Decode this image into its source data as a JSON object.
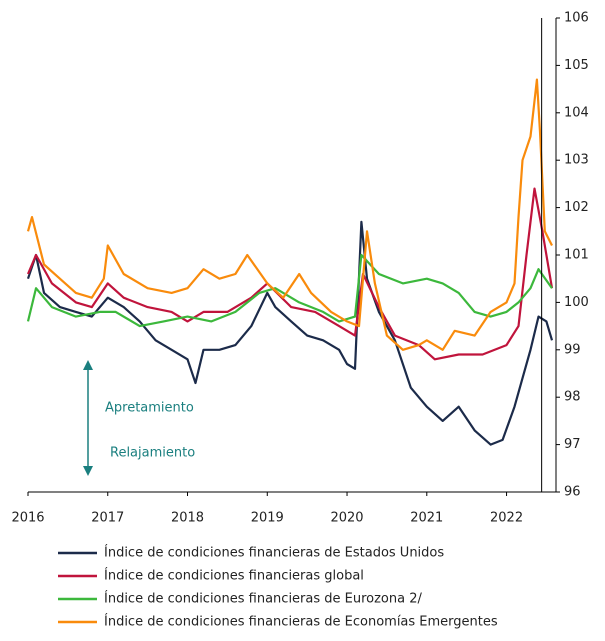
{
  "chart_data": {
    "type": "line",
    "xlim": [
      2016,
      2022.62
    ],
    "xticks": [
      2016,
      2017,
      2018,
      2019,
      2020,
      2021,
      2022
    ],
    "ylim": [
      96,
      106
    ],
    "yticks": [
      96,
      97,
      98,
      99,
      100,
      101,
      102,
      103,
      104,
      105,
      106
    ],
    "vline": 2022.44,
    "annotations": [
      "Apretamiento",
      "Relajamiento"
    ],
    "series": [
      {
        "name": "Índice de condiciones financieras de Estados Unidos",
        "color": "#1c2b4a",
        "x": [
          2016.0,
          2016.1,
          2016.2,
          2016.4,
          2016.6,
          2016.8,
          2017.0,
          2017.2,
          2017.4,
          2017.6,
          2017.8,
          2018.0,
          2018.1,
          2018.2,
          2018.4,
          2018.6,
          2018.8,
          2019.0,
          2019.1,
          2019.3,
          2019.5,
          2019.7,
          2019.9,
          2020.0,
          2020.1,
          2020.18,
          2020.25,
          2020.4,
          2020.6,
          2020.8,
          2021.0,
          2021.2,
          2021.4,
          2021.6,
          2021.8,
          2021.95,
          2022.1,
          2022.2,
          2022.3,
          2022.4,
          2022.5,
          2022.57
        ],
        "values": [
          100.5,
          101.0,
          100.2,
          99.9,
          99.8,
          99.7,
          100.1,
          99.9,
          99.6,
          99.2,
          99.0,
          98.8,
          98.3,
          99.0,
          99.0,
          99.1,
          99.5,
          100.2,
          99.9,
          99.6,
          99.3,
          99.2,
          99.0,
          98.7,
          98.6,
          101.7,
          100.5,
          99.8,
          99.2,
          98.2,
          97.8,
          97.5,
          97.8,
          97.3,
          97.0,
          97.1,
          97.8,
          98.4,
          99.0,
          99.7,
          99.6,
          99.2
        ]
      },
      {
        "name": "Índice de condiciones financieras global",
        "color": "#c0143c",
        "x": [
          2016.0,
          2016.1,
          2016.3,
          2016.6,
          2016.8,
          2017.0,
          2017.2,
          2017.5,
          2017.8,
          2018.0,
          2018.2,
          2018.5,
          2018.8,
          2019.0,
          2019.3,
          2019.6,
          2019.9,
          2020.1,
          2020.2,
          2020.4,
          2020.6,
          2020.9,
          2021.1,
          2021.4,
          2021.7,
          2022.0,
          2022.15,
          2022.25,
          2022.35,
          2022.45,
          2022.57
        ],
        "values": [
          100.6,
          101.0,
          100.4,
          100.0,
          99.9,
          100.4,
          100.1,
          99.9,
          99.8,
          99.6,
          99.8,
          99.8,
          100.1,
          100.4,
          99.9,
          99.8,
          99.5,
          99.3,
          100.6,
          99.9,
          99.3,
          99.1,
          98.8,
          98.9,
          98.9,
          99.1,
          99.5,
          101.0,
          102.4,
          101.5,
          100.3
        ]
      },
      {
        "name": "Índice de condiciones financieras de Eurozona 2/",
        "color": "#3cb83c",
        "x": [
          2016.0,
          2016.1,
          2016.3,
          2016.6,
          2016.9,
          2017.1,
          2017.4,
          2017.7,
          2018.0,
          2018.3,
          2018.6,
          2018.9,
          2019.1,
          2019.4,
          2019.7,
          2019.9,
          2020.1,
          2020.18,
          2020.4,
          2020.7,
          2021.0,
          2021.2,
          2021.4,
          2021.6,
          2021.8,
          2022.0,
          2022.15,
          2022.3,
          2022.4,
          2022.57
        ],
        "values": [
          99.6,
          100.3,
          99.9,
          99.7,
          99.8,
          99.8,
          99.5,
          99.6,
          99.7,
          99.6,
          99.8,
          100.2,
          100.3,
          100.0,
          99.8,
          99.6,
          99.7,
          101.0,
          100.6,
          100.4,
          100.5,
          100.4,
          100.2,
          99.8,
          99.7,
          99.8,
          100.0,
          100.3,
          100.7,
          100.3
        ]
      },
      {
        "name": "Índice de condiciones financieras de Economías Emergentes",
        "color": "#f98b0c",
        "x": [
          2016.0,
          2016.05,
          2016.2,
          2016.4,
          2016.6,
          2016.8,
          2016.95,
          2017.0,
          2017.2,
          2017.5,
          2017.8,
          2018.0,
          2018.2,
          2018.4,
          2018.6,
          2018.75,
          2019.0,
          2019.2,
          2019.4,
          2019.55,
          2019.8,
          2020.0,
          2020.15,
          2020.25,
          2020.35,
          2020.5,
          2020.7,
          2020.9,
          2021.0,
          2021.2,
          2021.35,
          2021.6,
          2021.8,
          2022.0,
          2022.1,
          2022.15,
          2022.2,
          2022.3,
          2022.38,
          2022.42,
          2022.48,
          2022.57
        ],
        "values": [
          101.5,
          101.8,
          100.8,
          100.5,
          100.2,
          100.1,
          100.5,
          101.2,
          100.6,
          100.3,
          100.2,
          100.3,
          100.7,
          100.5,
          100.6,
          101.0,
          100.4,
          100.1,
          100.6,
          100.2,
          99.8,
          99.6,
          99.5,
          101.5,
          100.4,
          99.3,
          99.0,
          99.1,
          99.2,
          99.0,
          99.4,
          99.3,
          99.8,
          100.0,
          100.4,
          101.8,
          103.0,
          103.5,
          104.7,
          103.6,
          101.5,
          101.2
        ]
      }
    ]
  }
}
